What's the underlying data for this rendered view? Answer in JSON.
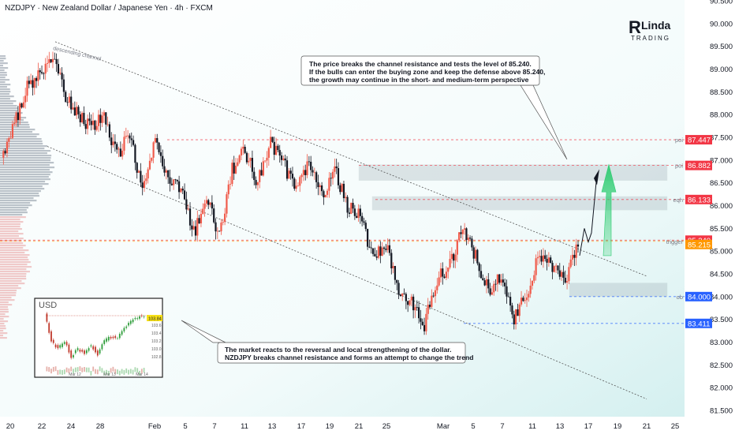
{
  "header": {
    "title": "NZDJPY · New Zealand Dollar / Japanese Yen · 4h · FXCM"
  },
  "logo": {
    "text_top": "Linda",
    "text_bottom": "TRADING"
  },
  "chart_data": {
    "type": "candlestick",
    "symbol": "NZDJPY",
    "timeframe": "4h",
    "ylim": [
      81.5,
      90.5
    ],
    "y_ticks": [
      "90.500",
      "90.000",
      "89.500",
      "89.000",
      "88.500",
      "88.000",
      "87.500",
      "87.000",
      "86.500",
      "86.000",
      "85.500",
      "85.000",
      "84.500",
      "84.000",
      "83.500",
      "83.000",
      "82.500",
      "82.000",
      "81.500"
    ],
    "x_ticks": [
      "20",
      "22",
      "24",
      "28",
      "Feb",
      "5",
      "7",
      "11",
      "13",
      "17",
      "19",
      "21",
      "25",
      "Mar",
      "5",
      "7",
      "11",
      "13",
      "17",
      "19",
      "21",
      "25"
    ],
    "price_path": [
      [
        "20",
        87.0
      ],
      [
        "21",
        87.8
      ],
      [
        "22",
        88.6
      ],
      [
        "23",
        88.9
      ],
      [
        "24",
        89.25
      ],
      [
        "24b",
        88.4
      ],
      [
        "27",
        88.0
      ],
      [
        "28",
        87.75
      ],
      [
        "29",
        87.9
      ],
      [
        "30",
        87.1
      ],
      [
        "31",
        87.6
      ],
      [
        "Feb",
        86.3
      ],
      [
        "3",
        87.4
      ],
      [
        "4",
        86.6
      ],
      [
        "5",
        86.4
      ],
      [
        "6",
        85.4
      ],
      [
        "7",
        86.2
      ],
      [
        "9",
        85.3
      ],
      [
        "11",
        86.8
      ],
      [
        "12",
        87.2
      ],
      [
        "13",
        86.5
      ],
      [
        "15",
        87.4
      ],
      [
        "17",
        86.9
      ],
      [
        "18",
        86.4
      ],
      [
        "19",
        86.9
      ],
      [
        "20",
        86.2
      ],
      [
        "21",
        86.8
      ],
      [
        "22",
        86.0
      ],
      [
        "24",
        85.8
      ],
      [
        "25",
        84.8
      ],
      [
        "26",
        85.1
      ],
      [
        "27",
        84.2
      ],
      [
        "28",
        83.9
      ],
      [
        "Mar",
        83.4
      ],
      [
        "2",
        84.4
      ],
      [
        "3",
        84.7
      ],
      [
        "5",
        85.5
      ],
      [
        "6",
        84.9
      ],
      [
        "7",
        84.1
      ],
      [
        "8",
        84.5
      ],
      [
        "10",
        83.5
      ],
      [
        "11",
        84.1
      ],
      [
        "12",
        84.9
      ],
      [
        "13",
        84.6
      ],
      [
        "14",
        84.3
      ],
      [
        "15",
        85.1
      ]
    ],
    "levels": [
      {
        "label": "poi",
        "value": 87.447,
        "tag": "87.447",
        "color": "#f23645"
      },
      {
        "label": "poi",
        "value": 86.882,
        "tag": "86.882",
        "color": "#f23645"
      },
      {
        "label": "eqh",
        "value": 86.133,
        "tag": "86.133",
        "color": "#f23645"
      },
      {
        "label": "",
        "value": 85.24,
        "tag": "85.240",
        "color": "#f23645"
      },
      {
        "label": "trigger",
        "value": 85.215,
        "tag": "85.215",
        "color": "#ff9800"
      },
      {
        "label": "ob",
        "value": 84.0,
        "tag": "84.000",
        "color": "#2962ff"
      },
      {
        "label": "",
        "value": 83.411,
        "tag": "83.411",
        "color": "#2962ff"
      }
    ],
    "zones": [
      {
        "from": 86.55,
        "to": 86.9
      },
      {
        "from": 85.9,
        "to": 86.2
      },
      {
        "from": 84.0,
        "to": 84.3
      }
    ],
    "channel_label": "descending channel",
    "annotations": [
      "The price breaks the channel resistance and tests the level of 85.240.",
      "If the bulls can enter the buying zone and keep the defense above 85.240,",
      "the growth may continue in the short- and medium-term perspective",
      "The market reacts to the reversal and local strengthening of the dollar.",
      "NZDJPY breaks channel resistance and forms an attempt to change the trend"
    ]
  },
  "inset": {
    "title": "USD",
    "price_tag": "103.84",
    "x_ticks": [
      "Mar 12",
      "Mar 13",
      "Mar 14"
    ],
    "y_ticks": [
      "103.8",
      "103.6",
      "103.4",
      "103.2",
      "103.0",
      "102.8"
    ],
    "series": [
      103.9,
      103.2,
      103.0,
      103.2,
      102.8,
      103.0,
      102.9,
      103.1,
      102.85,
      103.2,
      103.3,
      103.25,
      103.55,
      103.7,
      103.8,
      103.84
    ]
  },
  "colors": {
    "up": "#f05a4a",
    "down": "#131722",
    "arrow": "#2ecc71"
  }
}
